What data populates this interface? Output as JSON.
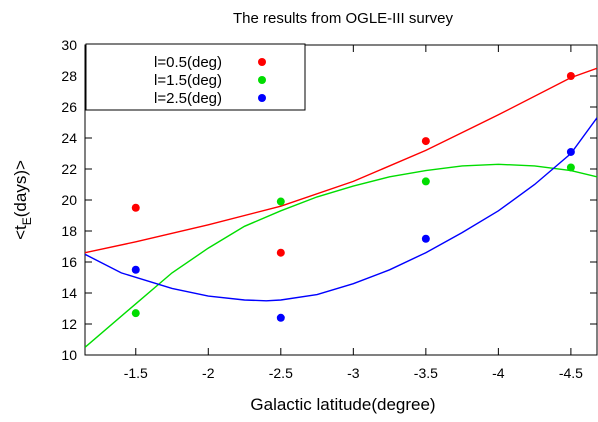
{
  "chart_data": {
    "type": "scatter",
    "title": "The results from OGLE-III survey",
    "xlabel": "Galactic latitude(degree)",
    "ylabel_main": "<t",
    "ylabel_sub": "E",
    "ylabel_tail": "(days)>",
    "xlim": [
      -1.15,
      -4.68
    ],
    "ylim": [
      10,
      30
    ],
    "x_ticks": [
      -1.5,
      -2,
      -2.5,
      -3,
      -3.5,
      -4,
      -4.5
    ],
    "x_tick_labels": [
      "-1.5",
      "-2",
      "-2.5",
      "-3",
      "-3.5",
      "-4",
      "-4.5"
    ],
    "y_ticks": [
      10,
      12,
      14,
      16,
      18,
      20,
      22,
      24,
      26,
      28,
      30
    ],
    "y_tick_labels": [
      "10",
      "12",
      "14",
      "16",
      "18",
      "20",
      "22",
      "24",
      "26",
      "28",
      "30"
    ],
    "legend_position": "top-left",
    "series": [
      {
        "name": "l=0.5(deg)",
        "color": "#ff0000",
        "x": [
          -1.5,
          -2.5,
          -3.5,
          -4.5
        ],
        "values": [
          19.5,
          16.6,
          23.8,
          28.0
        ],
        "fit": [
          [
            -1.15,
            16.6
          ],
          [
            -1.5,
            17.3
          ],
          [
            -2.0,
            18.4
          ],
          [
            -2.5,
            19.6
          ],
          [
            -3.0,
            21.2
          ],
          [
            -3.5,
            23.2
          ],
          [
            -4.0,
            25.5
          ],
          [
            -4.5,
            27.9
          ],
          [
            -4.68,
            28.5
          ]
        ]
      },
      {
        "name": "l=1.5(deg)",
        "color": "#00dd00",
        "x": [
          -1.5,
          -2.5,
          -3.5,
          -4.5
        ],
        "values": [
          12.7,
          19.9,
          21.2,
          22.1
        ],
        "fit": [
          [
            -1.15,
            10.5
          ],
          [
            -1.5,
            13.3
          ],
          [
            -1.75,
            15.3
          ],
          [
            -2.0,
            16.9
          ],
          [
            -2.25,
            18.3
          ],
          [
            -2.5,
            19.3
          ],
          [
            -2.75,
            20.2
          ],
          [
            -3.0,
            20.9
          ],
          [
            -3.25,
            21.5
          ],
          [
            -3.5,
            21.9
          ],
          [
            -3.75,
            22.2
          ],
          [
            -4.0,
            22.3
          ],
          [
            -4.25,
            22.2
          ],
          [
            -4.5,
            21.9
          ],
          [
            -4.68,
            21.5
          ]
        ]
      },
      {
        "name": "l=2.5(deg)",
        "color": "#0000ff",
        "x": [
          -1.5,
          -2.5,
          -3.5,
          -4.5
        ],
        "values": [
          15.5,
          12.4,
          17.5,
          23.1
        ],
        "fit": [
          [
            -1.15,
            16.5
          ],
          [
            -1.4,
            15.3
          ],
          [
            -1.75,
            14.3
          ],
          [
            -2.0,
            13.8
          ],
          [
            -2.25,
            13.55
          ],
          [
            -2.4,
            13.5
          ],
          [
            -2.5,
            13.55
          ],
          [
            -2.75,
            13.9
          ],
          [
            -3.0,
            14.6
          ],
          [
            -3.25,
            15.5
          ],
          [
            -3.5,
            16.6
          ],
          [
            -3.75,
            17.9
          ],
          [
            -4.0,
            19.3
          ],
          [
            -4.25,
            21.0
          ],
          [
            -4.5,
            23.0
          ],
          [
            -4.68,
            25.3
          ]
        ]
      }
    ]
  }
}
